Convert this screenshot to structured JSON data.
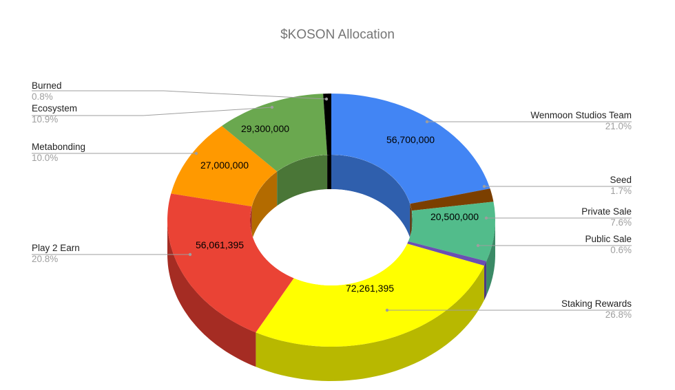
{
  "title": "$KOSON Allocation",
  "chart_data": {
    "type": "pie",
    "subtype": "3d-donut",
    "title": "$KOSON Allocation",
    "legend_position": "labeled",
    "slices": [
      {
        "label": "Wenmoon Studios Team",
        "value": 56700000,
        "value_label": "56,700,000",
        "percent": "21.0%",
        "color": "#4285f4",
        "side_color": "#2f5fad"
      },
      {
        "label": "Seed",
        "value": 4590000,
        "value_label": "",
        "percent": "1.7%",
        "color": "#7b3f00",
        "side_color": "#5a2e00"
      },
      {
        "label": "Private Sale",
        "value": 20500000,
        "value_label": "20,500,000",
        "percent": "7.6%",
        "color": "#52bc8b",
        "side_color": "#3b8a66"
      },
      {
        "label": "Public Sale",
        "value": 1620000,
        "value_label": "",
        "percent": "0.6%",
        "color": "#6a4fb3",
        "side_color": "#4d3a84"
      },
      {
        "label": "Staking Rewards",
        "value": 72261395,
        "value_label": "72,261,395",
        "percent": "26.8%",
        "color": "#ffff00",
        "side_color": "#b8b800"
      },
      {
        "label": "Play 2 Earn",
        "value": 56061395,
        "value_label": "56,061,395",
        "percent": "20.8%",
        "color": "#ea4335",
        "side_color": "#a52c23"
      },
      {
        "label": "Metabonding",
        "value": 27000000,
        "value_label": "27,000,000",
        "percent": "10.0%",
        "color": "#ff9900",
        "side_color": "#b36b00"
      },
      {
        "label": "Ecosystem",
        "value": 29300000,
        "value_label": "29,300,000",
        "percent": "10.9%",
        "color": "#6aa84f",
        "side_color": "#4a7637"
      },
      {
        "label": "Burned",
        "value": 2160000,
        "value_label": "",
        "percent": "0.8%",
        "color": "#000000",
        "side_color": "#000000"
      }
    ]
  },
  "labels": {
    "left": [
      {
        "name": "Burned",
        "pct": "0.8%"
      },
      {
        "name": "Ecosystem",
        "pct": "10.9%"
      },
      {
        "name": "Metabonding",
        "pct": "10.0%"
      },
      {
        "name": "Play 2 Earn",
        "pct": "20.8%"
      }
    ],
    "right": [
      {
        "name": "Wenmoon Studios Team",
        "pct": "21.0%"
      },
      {
        "name": "Seed",
        "pct": "1.7%"
      },
      {
        "name": "Private Sale",
        "pct": "7.6%"
      },
      {
        "name": "Public Sale",
        "pct": "0.6%"
      },
      {
        "name": "Staking Rewards",
        "pct": "26.8%"
      }
    ]
  },
  "value_labels": {
    "wenmoon": "56,700,000",
    "private_sale": "20,500,000",
    "staking": "72,261,395",
    "play2earn": "56,061,395",
    "metabonding": "27,000,000",
    "ecosystem": "29,300,000"
  }
}
